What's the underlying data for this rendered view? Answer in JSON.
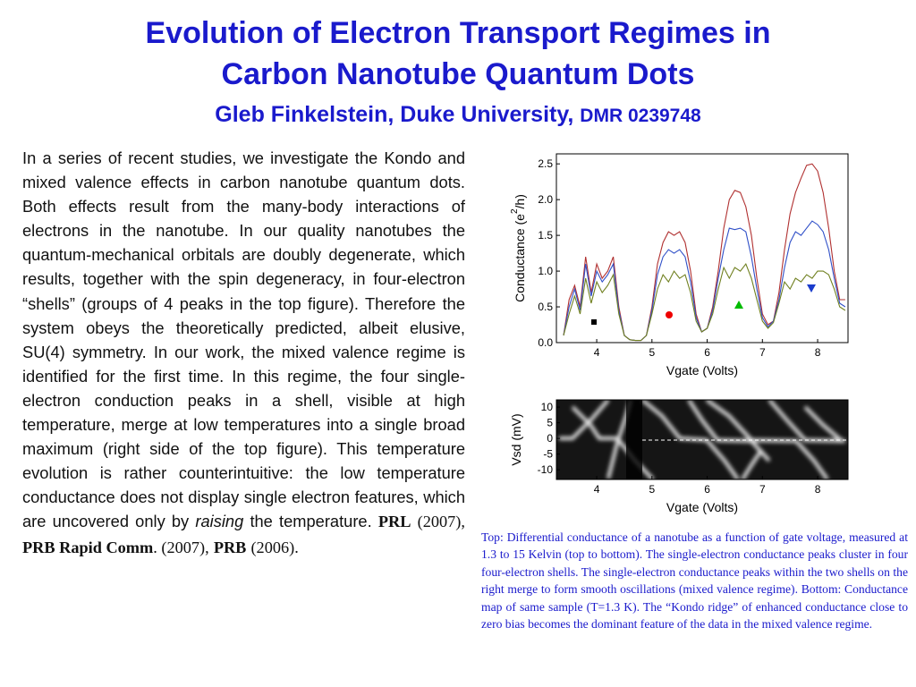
{
  "header": {
    "title_line1": "Evolution of Electron Transport Regimes in",
    "title_line2": "Carbon Nanotube Quantum Dots",
    "author": "Gleb Finkelstein, Duke University,",
    "grant": "DMR 0239748"
  },
  "body": {
    "text": "In a series of recent studies, we investigate the Kondo and mixed valence effects in carbon nanotube quantum dots. Both effects result from the many-body interactions of electrons in the nanotube. In our quality nanotubes the quantum-mechanical orbitals are doubly degenerate, which results, together with the spin degeneracy, in four-electron “shells” (groups of 4 peaks in the top figure).  Therefore the system obeys the theoretically predicted, albeit elusive, SU(4) symmetry. In our work, the mixed valence regime is identified for the first time. In this regime, the four single-electron conduction peaks in a shell, visible at high temperature, merge at low temperatures into a single broad maximum (right side of the top figure). This temperature evolution is rather counterintuitive: the low temperature conductance does not display single electron features, which are uncovered only by",
    "italic": "raising",
    "after": "the temperature.",
    "refs": [
      {
        "name": "PRL",
        "note": "(2007),"
      },
      {
        "name": "PRB Rapid Comm",
        "note": ". (2007),"
      },
      {
        "name": "PRB",
        "note": "(2006)."
      }
    ]
  },
  "caption": "Top: Differential conductance of a nanotube as a function of gate voltage, measured at 1.3 to 15 Kelvin (top to bottom). The single-electron conductance peaks cluster in four four-electron shells. The single-electron conductance peaks within the two shells on the right merge to form smooth oscillations (mixed valence regime). Bottom: Conductance map of same sample (T=1.3 K). The “Kondo ridge” of enhanced conductance close to zero bias becomes the dominant feature of the data in the mixed valence regime.",
  "top_chart": {
    "type": "line",
    "ylabel": "Conductance (e",
    "ylabel_sup": "2",
    "ylabel_end": "/h)",
    "xlabel": "Vgate (Volts)",
    "xlim": [
      3.27,
      8.55
    ],
    "ylim": [
      0,
      2.64
    ],
    "xticks": [
      4,
      5,
      6,
      7,
      8
    ],
    "yticks": [
      {
        "value": 0,
        "label": "0.0"
      },
      {
        "value": 0.5,
        "label": "0.5"
      },
      {
        "value": 1,
        "label": "1.0"
      },
      {
        "value": 1.5,
        "label": "1.5"
      },
      {
        "value": 2,
        "label": "2.0"
      },
      {
        "value": 2.5,
        "label": "2.5"
      }
    ],
    "x": [
      3.4,
      3.5,
      3.6,
      3.7,
      3.8,
      3.9,
      4.0,
      4.1,
      4.2,
      4.3,
      4.4,
      4.5,
      4.6,
      4.7,
      4.8,
      4.9,
      5.0,
      5.1,
      5.2,
      5.3,
      5.4,
      5.5,
      5.6,
      5.7,
      5.8,
      5.9,
      6.0,
      6.1,
      6.2,
      6.3,
      6.4,
      6.5,
      6.6,
      6.7,
      6.8,
      6.9,
      7.0,
      7.1,
      7.2,
      7.3,
      7.4,
      7.5,
      7.6,
      7.7,
      7.8,
      7.9,
      8.0,
      8.1,
      8.2,
      8.3,
      8.4,
      8.5
    ],
    "series": [
      {
        "color": "#b03030",
        "values": [
          0.1,
          0.6,
          0.8,
          0.5,
          1.2,
          0.7,
          1.1,
          0.9,
          1.0,
          1.2,
          0.5,
          0.1,
          0.04,
          0.03,
          0.03,
          0.1,
          0.5,
          1.1,
          1.4,
          1.55,
          1.5,
          1.55,
          1.4,
          1.0,
          0.4,
          0.15,
          0.2,
          0.5,
          1.0,
          1.6,
          2.0,
          2.13,
          2.1,
          1.9,
          1.5,
          0.9,
          0.4,
          0.25,
          0.3,
          0.7,
          1.3,
          1.8,
          2.1,
          2.3,
          2.48,
          2.5,
          2.4,
          2.1,
          1.6,
          1.0,
          0.6,
          0.6
        ]
      },
      {
        "color": "#3050c8",
        "values": [
          0.1,
          0.5,
          0.75,
          0.45,
          1.1,
          0.65,
          1.0,
          0.85,
          0.95,
          1.1,
          0.45,
          0.1,
          0.04,
          0.03,
          0.03,
          0.1,
          0.45,
          0.95,
          1.2,
          1.3,
          1.25,
          1.3,
          1.2,
          0.85,
          0.35,
          0.15,
          0.2,
          0.45,
          0.9,
          1.3,
          1.6,
          1.58,
          1.6,
          1.55,
          1.2,
          0.75,
          0.35,
          0.22,
          0.3,
          0.6,
          1.05,
          1.4,
          1.55,
          1.5,
          1.6,
          1.7,
          1.65,
          1.55,
          1.3,
          0.9,
          0.55,
          0.5
        ]
      },
      {
        "color": "#708020",
        "values": [
          0.1,
          0.4,
          0.65,
          0.4,
          0.9,
          0.55,
          0.85,
          0.7,
          0.8,
          0.95,
          0.4,
          0.1,
          0.04,
          0.03,
          0.03,
          0.1,
          0.4,
          0.75,
          0.95,
          0.85,
          1.0,
          0.9,
          0.95,
          0.7,
          0.3,
          0.15,
          0.2,
          0.4,
          0.75,
          1.05,
          0.9,
          1.05,
          1.0,
          1.1,
          0.9,
          0.6,
          0.3,
          0.2,
          0.28,
          0.55,
          0.85,
          0.75,
          0.9,
          0.85,
          0.95,
          0.9,
          1.0,
          1.0,
          0.95,
          0.75,
          0.5,
          0.45
        ]
      }
    ]
  },
  "bottom_chart": {
    "type": "heatmap",
    "ylabel": "Vsd (mV)",
    "xlabel": "Vgate (Volts)",
    "xlim": [
      3.27,
      8.55
    ],
    "ylim": [
      -13.1,
      12.3
    ],
    "xticks": [
      4,
      5,
      6,
      7,
      8
    ],
    "yticks": [
      10,
      5,
      0,
      -5,
      -10
    ]
  }
}
